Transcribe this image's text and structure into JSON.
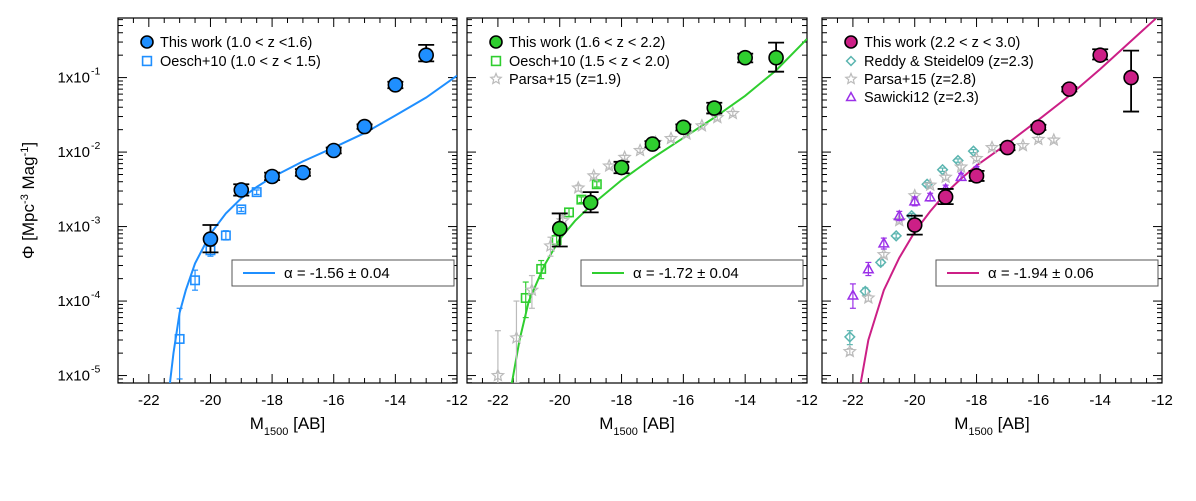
{
  "chart_data": [
    {
      "type": "scatter",
      "panel": "left",
      "xlabel_main": "M",
      "xlabel_sub": "1500",
      "xlabel_rest": " [AB]",
      "ylabel_prefix": "Φ [Mpc",
      "ylabel_sup1": "-3",
      "ylabel_mid": " Mag",
      "ylabel_sup2": "-1",
      "ylabel_suffix": "]",
      "xlim": [
        -23,
        -12
      ],
      "ylim_log10": [
        -5.1,
        -0.2
      ],
      "y_scale": "log",
      "x_ticks": [
        "-22",
        "-20",
        "-18",
        "-16",
        "-14",
        "-12"
      ],
      "y_ticks": [
        "1x10",
        "1x10",
        "1x10",
        "1x10",
        "1x10"
      ],
      "y_tick_exps": [
        "-5",
        "-4",
        "-3",
        "-2",
        "-1"
      ],
      "legend_position": "top-left",
      "fit_color": "#1f8fff",
      "fit_label": "α = -1.56 ± 0.04",
      "fit_curve": [
        [
          -21.4,
          4e-06
        ],
        [
          -21.2,
          2e-05
        ],
        [
          -21.0,
          7e-05
        ],
        [
          -20.8,
          0.00014
        ],
        [
          -20.5,
          0.00032
        ],
        [
          -20.0,
          0.0008
        ],
        [
          -19.5,
          0.0015
        ],
        [
          -19.0,
          0.0024
        ],
        [
          -18.5,
          0.0034
        ],
        [
          -18.0,
          0.0046
        ],
        [
          -17.0,
          0.0075
        ],
        [
          -16.0,
          0.0115
        ],
        [
          -15.0,
          0.018
        ],
        [
          -14.0,
          0.031
        ],
        [
          -13.0,
          0.054
        ],
        [
          -12.0,
          0.106
        ]
      ],
      "series": [
        {
          "name": "This work (1.0 < z <1.6)",
          "marker": "circle",
          "color": "#1f8fff",
          "points": [
            {
              "x": -20.0,
              "y": 0.00068,
              "lo": 0.00045,
              "hi": 0.00105
            },
            {
              "x": -19.0,
              "y": 0.0031,
              "lo": 0.0026,
              "hi": 0.0037
            },
            {
              "x": -18.0,
              "y": 0.0047,
              "lo": 0.0042,
              "hi": 0.0053
            },
            {
              "x": -17.0,
              "y": 0.0053,
              "lo": 0.0048,
              "hi": 0.0059
            },
            {
              "x": -16.0,
              "y": 0.0105,
              "lo": 0.0096,
              "hi": 0.0115
            },
            {
              "x": -15.0,
              "y": 0.022,
              "lo": 0.0205,
              "hi": 0.0235
            },
            {
              "x": -14.0,
              "y": 0.08,
              "lo": 0.072,
              "hi": 0.088
            },
            {
              "x": -13.0,
              "y": 0.2,
              "lo": 0.165,
              "hi": 0.275
            }
          ]
        },
        {
          "name": "Oesch+10 (1.0 < z < 1.5)",
          "marker": "square-open",
          "color": "#1f8fff",
          "points": [
            {
              "x": -21.0,
              "y": 3.1e-05,
              "lo": 9e-06,
              "hi": 8e-05
            },
            {
              "x": -20.5,
              "y": 0.00019,
              "lo": 0.00014,
              "hi": 0.00026
            },
            {
              "x": -20.0,
              "y": 0.00048,
              "lo": 0.0004,
              "hi": 0.00057
            },
            {
              "x": -19.5,
              "y": 0.00076,
              "lo": 0.00066,
              "hi": 0.00088
            },
            {
              "x": -19.0,
              "y": 0.0017,
              "lo": 0.0016,
              "hi": 0.0018
            },
            {
              "x": -18.5,
              "y": 0.0029,
              "lo": 0.0027,
              "hi": 0.0031
            },
            {
              "x": -18.0,
              "y": 0.0045,
              "lo": 0.0043,
              "hi": 0.0047
            }
          ]
        }
      ]
    },
    {
      "type": "scatter",
      "panel": "middle",
      "xlabel_main": "M",
      "xlabel_sub": "1500",
      "xlabel_rest": " [AB]",
      "xlim": [
        -23,
        -12
      ],
      "ylim_log10": [
        -5.1,
        -0.2
      ],
      "y_scale": "log",
      "x_ticks": [
        "-22",
        "-20",
        "-18",
        "-16",
        "-14",
        "-12"
      ],
      "legend_position": "top-left",
      "fit_color": "#2fce2f",
      "fit_label": "α = -1.72 ± 0.04",
      "fit_curve": [
        [
          -21.6,
          6e-06
        ],
        [
          -21.3,
          3e-05
        ],
        [
          -21.0,
          0.0001
        ],
        [
          -20.5,
          0.0003
        ],
        [
          -20.0,
          0.00068
        ],
        [
          -19.5,
          0.0012
        ],
        [
          -19.0,
          0.0019
        ],
        [
          -18.0,
          0.0042
        ],
        [
          -17.0,
          0.0083
        ],
        [
          -16.0,
          0.0155
        ],
        [
          -15.0,
          0.029
        ],
        [
          -14.0,
          0.057
        ],
        [
          -13.0,
          0.125
        ],
        [
          -12.0,
          0.33
        ]
      ],
      "series": [
        {
          "name": "This work (1.6 < z < 2.2)",
          "marker": "circle",
          "color": "#2fce2f",
          "points": [
            {
              "x": -20.0,
              "y": 0.00094,
              "lo": 0.00054,
              "hi": 0.0015
            },
            {
              "x": -19.0,
              "y": 0.0021,
              "lo": 0.00155,
              "hi": 0.0029
            },
            {
              "x": -18.0,
              "y": 0.0062,
              "lo": 0.0052,
              "hi": 0.0074
            },
            {
              "x": -17.0,
              "y": 0.0128,
              "lo": 0.0116,
              "hi": 0.014
            },
            {
              "x": -16.0,
              "y": 0.0215,
              "lo": 0.0195,
              "hi": 0.0235
            },
            {
              "x": -15.0,
              "y": 0.039,
              "lo": 0.033,
              "hi": 0.046
            },
            {
              "x": -14.0,
              "y": 0.185,
              "lo": 0.16,
              "hi": 0.21
            },
            {
              "x": -13.0,
              "y": 0.185,
              "lo": 0.12,
              "hi": 0.295
            }
          ]
        },
        {
          "name": "Oesch+10 (1.5 < z < 2.0)",
          "marker": "square-open",
          "color": "#2fce2f",
          "points": [
            {
              "x": -21.1,
              "y": 0.00011,
              "lo": 6e-05,
              "hi": 0.00018
            },
            {
              "x": -20.6,
              "y": 0.00027,
              "lo": 0.0002,
              "hi": 0.00035
            },
            {
              "x": -20.1,
              "y": 0.00066,
              "lo": 0.00055,
              "hi": 0.00078
            },
            {
              "x": -19.7,
              "y": 0.00155,
              "lo": 0.00135,
              "hi": 0.00175
            },
            {
              "x": -19.3,
              "y": 0.0023,
              "lo": 0.0021,
              "hi": 0.0025
            },
            {
              "x": -18.8,
              "y": 0.0037,
              "lo": 0.0034,
              "hi": 0.004
            }
          ]
        },
        {
          "name": "Parsa+15 (z=1.9)",
          "marker": "star-open",
          "color": "#bbbbbb",
          "points": [
            {
              "x": -22.0,
              "y": 1e-05,
              "lo": 1e-06,
              "hi": 4e-05
            },
            {
              "x": -21.4,
              "y": 3.2e-05,
              "lo": 8e-06,
              "hi": 0.0001
            },
            {
              "x": -20.9,
              "y": 0.00014,
              "lo": 8e-05,
              "hi": 0.00022
            },
            {
              "x": -20.3,
              "y": 0.00055,
              "lo": 0.0004,
              "hi": 0.00072
            },
            {
              "x": -19.9,
              "y": 0.0012,
              "lo": 0.001,
              "hi": 0.0014
            },
            {
              "x": -19.4,
              "y": 0.0033,
              "lo": 0.003,
              "hi": 0.0036
            },
            {
              "x": -18.9,
              "y": 0.0048,
              "lo": 0.0045,
              "hi": 0.0051
            },
            {
              "x": -18.4,
              "y": 0.0065,
              "lo": 0.0061,
              "hi": 0.0069
            },
            {
              "x": -17.9,
              "y": 0.0085,
              "lo": 0.008,
              "hi": 0.009
            },
            {
              "x": -17.4,
              "y": 0.0105,
              "lo": 0.0099,
              "hi": 0.0111
            },
            {
              "x": -16.9,
              "y": 0.0135,
              "lo": 0.0127,
              "hi": 0.0143
            },
            {
              "x": -16.4,
              "y": 0.0152,
              "lo": 0.0142,
              "hi": 0.0162
            },
            {
              "x": -15.9,
              "y": 0.0175,
              "lo": 0.0163,
              "hi": 0.0187
            },
            {
              "x": -15.4,
              "y": 0.0225,
              "lo": 0.021,
              "hi": 0.024
            },
            {
              "x": -14.9,
              "y": 0.029,
              "lo": 0.027,
              "hi": 0.031
            },
            {
              "x": -14.4,
              "y": 0.033,
              "lo": 0.031,
              "hi": 0.035
            }
          ]
        }
      ]
    },
    {
      "type": "scatter",
      "panel": "right",
      "xlabel_main": "M",
      "xlabel_sub": "1500",
      "xlabel_rest": " [AB]",
      "xlim": [
        -23,
        -12
      ],
      "ylim_log10": [
        -5.1,
        -0.2
      ],
      "y_scale": "log",
      "x_ticks": [
        "-22",
        "-20",
        "-18",
        "-16",
        "-14",
        "-12"
      ],
      "legend_position": "top-left",
      "fit_color": "#cc1f86",
      "fit_label": "α = -1.94 ± 0.06",
      "fit_curve": [
        [
          -21.8,
          6e-06
        ],
        [
          -21.5,
          3e-05
        ],
        [
          -21.0,
          0.00014
        ],
        [
          -20.5,
          0.00038
        ],
        [
          -20.0,
          0.00085
        ],
        [
          -19.5,
          0.0016
        ],
        [
          -19.0,
          0.0028
        ],
        [
          -18.5,
          0.0044
        ],
        [
          -18.0,
          0.0066
        ],
        [
          -17.0,
          0.013
        ],
        [
          -16.0,
          0.027
        ],
        [
          -15.0,
          0.057
        ],
        [
          -14.0,
          0.13
        ],
        [
          -13.0,
          0.31
        ],
        [
          -12.2,
          0.62
        ]
      ],
      "series": [
        {
          "name": "This work (2.2 < z < 3.0)",
          "marker": "circle",
          "color": "#cc1f86",
          "points": [
            {
              "x": -20.0,
              "y": 0.00105,
              "lo": 0.00078,
              "hi": 0.0014
            },
            {
              "x": -19.0,
              "y": 0.0025,
              "lo": 0.002,
              "hi": 0.0032
            },
            {
              "x": -18.0,
              "y": 0.0048,
              "lo": 0.0041,
              "hi": 0.0056
            },
            {
              "x": -17.0,
              "y": 0.0115,
              "lo": 0.0106,
              "hi": 0.0125
            },
            {
              "x": -16.0,
              "y": 0.0215,
              "lo": 0.0198,
              "hi": 0.0233
            },
            {
              "x": -15.0,
              "y": 0.07,
              "lo": 0.065,
              "hi": 0.075
            },
            {
              "x": -14.0,
              "y": 0.2,
              "lo": 0.175,
              "hi": 0.24
            },
            {
              "x": -13.0,
              "y": 0.1,
              "lo": 0.035,
              "hi": 0.23
            }
          ]
        },
        {
          "name": "Reddy & Steidel09 (z=2.3)",
          "marker": "diamond-open",
          "color": "#5bb5b0",
          "points": [
            {
              "x": -22.1,
              "y": 3.3e-05,
              "lo": 2.6e-05,
              "hi": 4e-05
            },
            {
              "x": -21.6,
              "y": 0.000135,
              "lo": 0.00012,
              "hi": 0.00015
            },
            {
              "x": -21.1,
              "y": 0.00033,
              "lo": 0.0003,
              "hi": 0.00036
            },
            {
              "x": -20.6,
              "y": 0.00075,
              "lo": 0.0007,
              "hi": 0.0008
            },
            {
              "x": -20.1,
              "y": 0.0014,
              "lo": 0.0013,
              "hi": 0.0015
            },
            {
              "x": -19.6,
              "y": 0.0037,
              "lo": 0.0035,
              "hi": 0.0039
            },
            {
              "x": -19.1,
              "y": 0.0058,
              "lo": 0.0055,
              "hi": 0.0061
            },
            {
              "x": -18.6,
              "y": 0.0077,
              "lo": 0.0073,
              "hi": 0.0081
            },
            {
              "x": -18.1,
              "y": 0.0103,
              "lo": 0.0098,
              "hi": 0.0108
            }
          ]
        },
        {
          "name": "Parsa+15 (z=2.8)",
          "marker": "star-open",
          "color": "#bbbbbb",
          "points": [
            {
              "x": -22.1,
              "y": 2.1e-05,
              "lo": 1.9e-05,
              "hi": 2.3e-05
            },
            {
              "x": -21.5,
              "y": 0.00011,
              "lo": 0.0001,
              "hi": 0.00012
            },
            {
              "x": -21.0,
              "y": 0.00042,
              "lo": 0.00039,
              "hi": 0.00045
            },
            {
              "x": -20.5,
              "y": 0.0012,
              "lo": 0.00112,
              "hi": 0.00128
            },
            {
              "x": -20.0,
              "y": 0.0026,
              "lo": 0.0024,
              "hi": 0.0028
            },
            {
              "x": -19.5,
              "y": 0.0036,
              "lo": 0.0034,
              "hi": 0.0038
            },
            {
              "x": -19.0,
              "y": 0.0046,
              "lo": 0.0043,
              "hi": 0.0049
            },
            {
              "x": -18.5,
              "y": 0.0063,
              "lo": 0.0059,
              "hi": 0.0067
            },
            {
              "x": -18.0,
              "y": 0.0082,
              "lo": 0.0077,
              "hi": 0.0087
            },
            {
              "x": -17.5,
              "y": 0.0115,
              "lo": 0.0108,
              "hi": 0.0122
            },
            {
              "x": -17.0,
              "y": 0.0118,
              "lo": 0.011,
              "hi": 0.0126
            },
            {
              "x": -16.5,
              "y": 0.0122,
              "lo": 0.0114,
              "hi": 0.013
            },
            {
              "x": -16.0,
              "y": 0.0148,
              "lo": 0.0139,
              "hi": 0.0157
            },
            {
              "x": -15.5,
              "y": 0.0145,
              "lo": 0.0136,
              "hi": 0.0154
            }
          ]
        },
        {
          "name": "Sawicki12 (z=2.3)",
          "marker": "triangle-open",
          "color": "#9b30e8",
          "points": [
            {
              "x": -22.0,
              "y": 0.00012,
              "lo": 8e-05,
              "hi": 0.00017
            },
            {
              "x": -21.5,
              "y": 0.00027,
              "lo": 0.00022,
              "hi": 0.00033
            },
            {
              "x": -21.0,
              "y": 0.0006,
              "lo": 0.0005,
              "hi": 0.0007
            },
            {
              "x": -20.5,
              "y": 0.0014,
              "lo": 0.0012,
              "hi": 0.0016
            },
            {
              "x": -20.0,
              "y": 0.0022,
              "lo": 0.0019,
              "hi": 0.0025
            },
            {
              "x": -19.5,
              "y": 0.0025,
              "lo": 0.0022,
              "hi": 0.0028
            },
            {
              "x": -19.0,
              "y": 0.0032,
              "lo": 0.0029,
              "hi": 0.0036
            },
            {
              "x": -18.5,
              "y": 0.0047,
              "lo": 0.0042,
              "hi": 0.0052
            },
            {
              "x": -18.0,
              "y": 0.0058,
              "lo": 0.0052,
              "hi": 0.0064
            }
          ]
        }
      ]
    }
  ]
}
